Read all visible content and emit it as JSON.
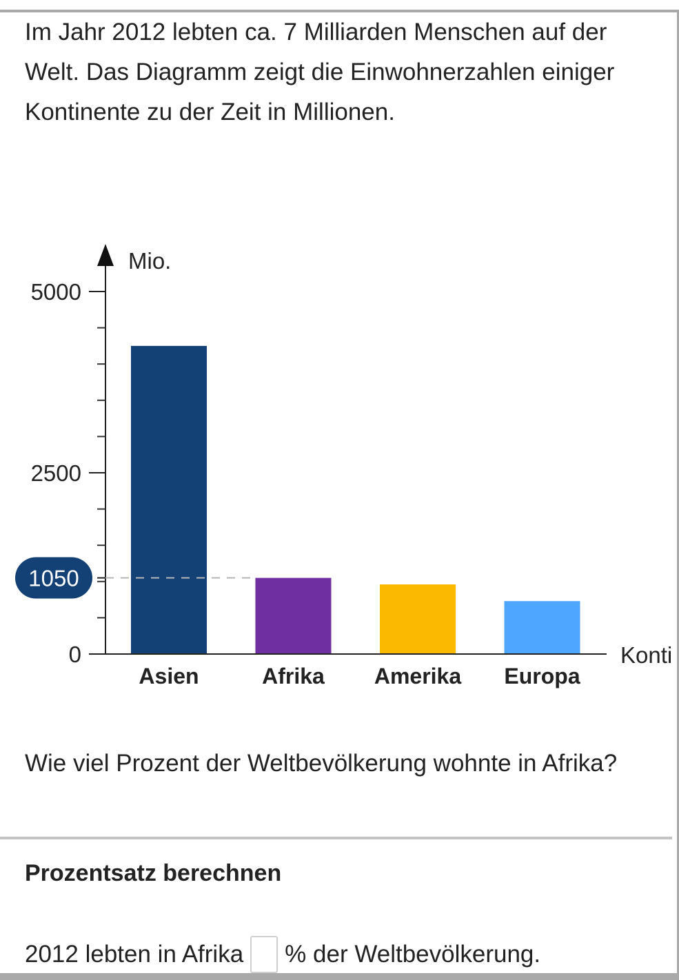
{
  "task": {
    "intro_text": "Im Jahr 2012 lebten ca. 7 Milliarden Menschen auf der Welt. Das Diagramm zeigt die Einwohnerzahlen einiger Kontinente zu der Zeit in Millionen.",
    "question_text": "Wie viel Prozent der Weltbevölkerung wohnte in Afrika?",
    "section_title": "Prozentsatz berechnen",
    "answer_prefix": "2012 lebten in Afrika",
    "answer_suffix": "% der Weltbevölkerung."
  },
  "chart_data": {
    "type": "bar",
    "categories": [
      "Asien",
      "Afrika",
      "Amerika",
      "Europa"
    ],
    "values": [
      4250,
      1050,
      960,
      730
    ],
    "colors": [
      "#134175",
      "#6f2fa0",
      "#fbb900",
      "#4fa6fd"
    ],
    "ylabel": "Mio.",
    "xlabel": "Konti",
    "ylim": [
      0,
      5000
    ],
    "yticks_labeled": [
      "5000",
      "2500",
      "0"
    ],
    "minor_tick_step": 500,
    "highlight": {
      "label": "1050",
      "value": 1050,
      "color": "#134175"
    }
  }
}
